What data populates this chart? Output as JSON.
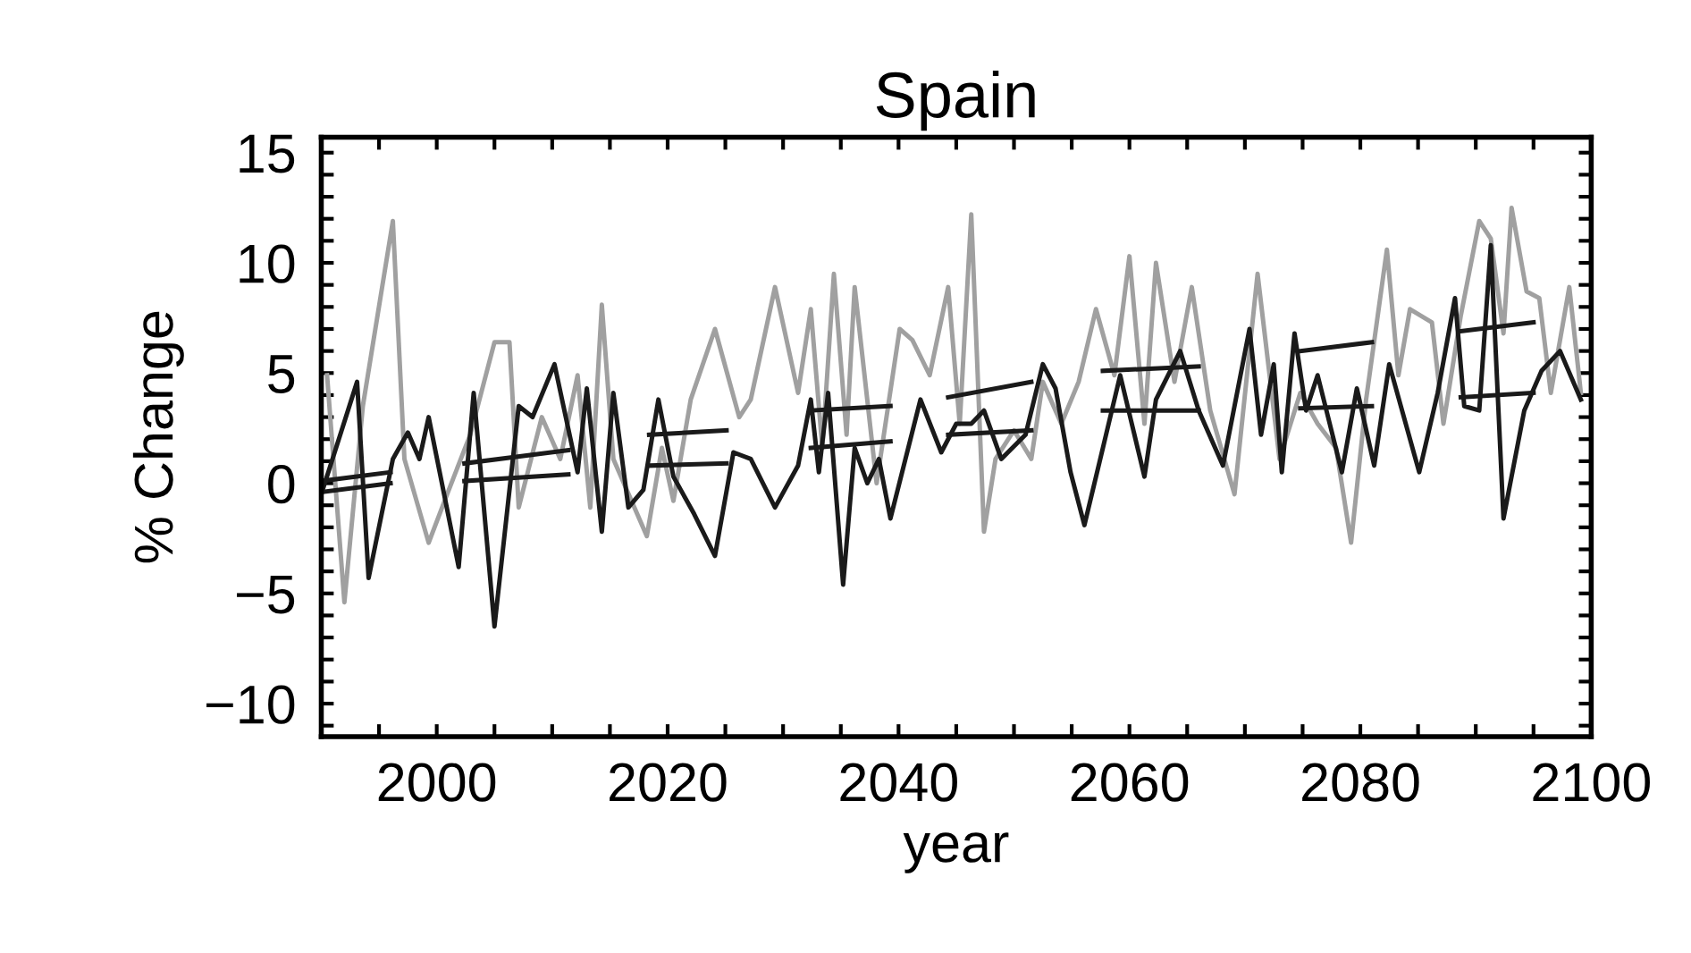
{
  "chart_data": {
    "type": "line",
    "title": "Spain",
    "xlabel": "year",
    "ylabel": "% Change",
    "xlim": [
      1990,
      2100
    ],
    "ylim": [
      -11.5,
      15.7
    ],
    "xticks": [
      {
        "value": 1990,
        "label": null
      },
      {
        "value": 1995,
        "label": null
      },
      2000,
      {
        "value": 2005,
        "label": null
      },
      {
        "value": 2010,
        "label": null
      },
      {
        "value": 2015,
        "label": null
      },
      2020,
      {
        "value": 2025,
        "label": null
      },
      {
        "value": 2030,
        "label": null
      },
      {
        "value": 2035,
        "label": null
      },
      2040,
      {
        "value": 2045,
        "label": null
      },
      {
        "value": 2050,
        "label": null
      },
      {
        "value": 2055,
        "label": null
      },
      2060,
      {
        "value": 2065,
        "label": null
      },
      {
        "value": 2070,
        "label": null
      },
      {
        "value": 2075,
        "label": null
      },
      2080,
      {
        "value": 2085,
        "label": null
      },
      {
        "value": 2090,
        "label": null
      },
      {
        "value": 2095,
        "label": null
      },
      2100
    ],
    "yticks": [
      {
        "value": -11,
        "label": null
      },
      {
        "value": -10,
        "label": "−10"
      },
      {
        "value": -9,
        "label": null
      },
      {
        "value": -8,
        "label": null
      },
      {
        "value": -7,
        "label": null
      },
      {
        "value": -6,
        "label": null
      },
      {
        "value": -5,
        "label": "−5"
      },
      {
        "value": -4,
        "label": null
      },
      {
        "value": -3,
        "label": null
      },
      {
        "value": -2,
        "label": null
      },
      {
        "value": -1,
        "label": null
      },
      0,
      {
        "value": 1,
        "label": null
      },
      {
        "value": 2,
        "label": null
      },
      {
        "value": 3,
        "label": null
      },
      {
        "value": 4,
        "label": null
      },
      5,
      {
        "value": 6,
        "label": null
      },
      {
        "value": 7,
        "label": null
      },
      {
        "value": 8,
        "label": null
      },
      {
        "value": 9,
        "label": null
      },
      10,
      {
        "value": 11,
        "label": null
      },
      {
        "value": 12,
        "label": null
      },
      {
        "value": 13,
        "label": null
      },
      {
        "value": 14,
        "label": null
      },
      15
    ],
    "grid": false,
    "marker": "none",
    "line_style": "solid",
    "series": [
      {
        "color": "#a0a0a0",
        "x": [
          1990.5,
          1992,
          1993.6,
          1996.2,
          1997.2,
          1999.3,
          2000.9,
          2002.9,
          2005,
          2006.3,
          2007.1,
          2009.1,
          2010.7,
          2012.2,
          2013.3,
          2014.3,
          2015.3,
          2018.2,
          2019.5,
          2020.5,
          2022,
          2024.1,
          2026.2,
          2027.2,
          2029.3,
          2031.3,
          2032.4,
          2033.4,
          2034.4,
          2035.5,
          2036.2,
          2038.1,
          2040.1,
          2041.2,
          2042.7,
          2044.3,
          2045.3,
          2046.3,
          2047.4,
          2048.4,
          2050,
          2051.5,
          2052.5,
          2054.1,
          2055.6,
          2057.1,
          2058.7,
          2060,
          2061.3,
          2062.3,
          2063.9,
          2065.4,
          2067,
          2069.1,
          2071.1,
          2073,
          2074.8,
          2076.3,
          2077.9,
          2079.2,
          2080.5,
          2082.3,
          2083.3,
          2084.3,
          2086.2,
          2087.2,
          2088.7,
          2090.3,
          2091.3,
          2092.4,
          2093.1,
          2094.4,
          2095.5,
          2096.5,
          2098.1,
          2099.1
        ],
        "values": [
          4.9,
          -5.4,
          3.5,
          11.9,
          1.1,
          -2.7,
          -0.5,
          2.2,
          6.4,
          6.4,
          -1.1,
          3.0,
          1.1,
          4.9,
          -1.1,
          8.1,
          1.1,
          -2.4,
          1.6,
          -0.8,
          3.8,
          7.0,
          3.0,
          3.8,
          8.9,
          4.1,
          7.9,
          1.6,
          9.5,
          2.2,
          8.9,
          0,
          7.0,
          6.5,
          4.9,
          8.9,
          2.7,
          12.2,
          -2.2,
          1.1,
          2.4,
          1.1,
          4.6,
          2.7,
          4.6,
          7.9,
          4.9,
          10.3,
          2.7,
          10.0,
          4.6,
          8.9,
          3.3,
          -0.5,
          9.5,
          1.1,
          4.1,
          2.7,
          1.6,
          -2.7,
          3.8,
          10.6,
          4.9,
          7.9,
          7.3,
          2.7,
          7.6,
          11.9,
          11.1,
          6.8,
          12.5,
          8.7,
          8.4,
          4.1,
          8.9,
          4.1
        ]
      },
      {
        "color": "#1a1a1a",
        "x": [
          1990,
          1993.1,
          1994.1,
          1996.2,
          1997.5,
          1998.5,
          1999.3,
          2001.9,
          2003.2,
          2005,
          2007.1,
          2008.3,
          2010.2,
          2012.2,
          2013,
          2014.3,
          2015.3,
          2016.6,
          2017.9,
          2019.2,
          2020.5,
          2022.3,
          2024.1,
          2025.7,
          2027.2,
          2029.3,
          2031.3,
          2032.4,
          2033.1,
          2033.9,
          2035.2,
          2036.2,
          2037.3,
          2038.3,
          2039.3,
          2040.6,
          2041.9,
          2043.7,
          2045,
          2046.3,
          2047.4,
          2048.9,
          2051,
          2052.5,
          2053.6,
          2054.9,
          2056.1,
          2057.7,
          2059.2,
          2061.3,
          2062.3,
          2064.4,
          2066,
          2068.1,
          2070.4,
          2071.4,
          2072.5,
          2073.2,
          2074.3,
          2075.3,
          2076.3,
          2078.4,
          2079.7,
          2081.2,
          2082.5,
          2085.1,
          2086.7,
          2088.2,
          2089,
          2090.3,
          2091.3,
          2092.4,
          2094.2,
          2095.7,
          2097.3,
          2099.1
        ],
        "values": [
          -0.5,
          4.6,
          -4.3,
          1.1,
          2.3,
          1.1,
          3.0,
          -3.8,
          4.1,
          -6.5,
          3.5,
          3.0,
          5.4,
          0.5,
          4.3,
          -2.2,
          4.1,
          -1.1,
          -0.3,
          3.8,
          0.3,
          -1.4,
          -3.3,
          1.4,
          1.1,
          -1.1,
          0.8,
          3.8,
          0.5,
          4.1,
          -4.6,
          1.6,
          0,
          1.1,
          -1.6,
          1.1,
          3.8,
          1.4,
          2.7,
          2.7,
          3.3,
          1.1,
          2.2,
          5.4,
          4.3,
          0.5,
          -1.9,
          1.6,
          4.9,
          0.3,
          3.8,
          6.0,
          3.3,
          0.8,
          7.0,
          2.2,
          5.4,
          0.5,
          6.8,
          3.3,
          4.9,
          0.5,
          4.3,
          0.8,
          5.4,
          0.5,
          4.1,
          8.4,
          3.5,
          3.3,
          10.8,
          -1.6,
          3.3,
          5.1,
          6.0,
          3.8
        ]
      },
      {
        "type": "line",
        "color": "#1a1a1a",
        "x": [
          1990,
          1996
        ],
        "values": [
          0.1,
          0.5
        ]
      },
      {
        "type": "line",
        "color": "#1a1a1a",
        "x": [
          1990,
          1996
        ],
        "values": [
          -0.4,
          0
        ]
      },
      {
        "type": "line",
        "color": "#1a1a1a",
        "x": [
          2002.4,
          2011.4
        ],
        "values": [
          0.9,
          1.5
        ]
      },
      {
        "type": "line",
        "color": "#1a1a1a",
        "x": [
          2002.4,
          2011.4
        ],
        "values": [
          0.1,
          0.4
        ]
      },
      {
        "type": "line",
        "color": "#1a1a1a",
        "x": [
          2018.4,
          2025.1
        ],
        "values": [
          2.2,
          2.4
        ]
      },
      {
        "type": "line",
        "color": "#1a1a1a",
        "x": [
          2018.4,
          2025.1
        ],
        "values": [
          0.8,
          0.9
        ]
      },
      {
        "type": "line",
        "color": "#1a1a1a",
        "x": [
          2032.4,
          2039.3
        ],
        "values": [
          3.3,
          3.5
        ]
      },
      {
        "type": "line",
        "color": "#1a1a1a",
        "x": [
          2032.4,
          2039.3
        ],
        "values": [
          1.6,
          1.9
        ]
      },
      {
        "type": "line",
        "color": "#1a1a1a",
        "x": [
          2044.3,
          2051.5
        ],
        "values": [
          3.9,
          4.6
        ]
      },
      {
        "type": "line",
        "color": "#1a1a1a",
        "x": [
          2044.3,
          2051.5
        ],
        "values": [
          2.2,
          2.4
        ]
      },
      {
        "type": "line",
        "color": "#1a1a1a",
        "x": [
          2057.7,
          2066
        ],
        "values": [
          5.1,
          5.3
        ]
      },
      {
        "type": "line",
        "color": "#1a1a1a",
        "x": [
          2057.7,
          2066
        ],
        "values": [
          3.3,
          3.3
        ]
      },
      {
        "type": "line",
        "color": "#1a1a1a",
        "x": [
          2074.8,
          2081
        ],
        "values": [
          6.0,
          6.4
        ]
      },
      {
        "type": "line",
        "color": "#1a1a1a",
        "x": [
          2074.8,
          2081
        ],
        "values": [
          3.4,
          3.5
        ]
      },
      {
        "type": "line",
        "color": "#1a1a1a",
        "x": [
          2088.7,
          2095
        ],
        "values": [
          6.9,
          7.3
        ]
      },
      {
        "type": "line",
        "color": "#1a1a1a",
        "x": [
          2088.7,
          2095
        ],
        "values": [
          3.9,
          4.1
        ]
      }
    ]
  }
}
